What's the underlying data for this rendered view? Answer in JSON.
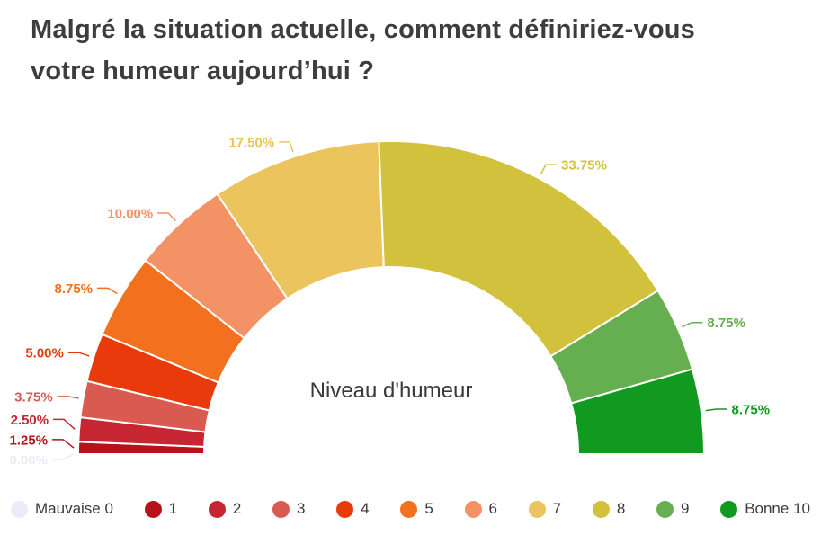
{
  "title": {
    "full": "Malgré la situation actuelle, comment définiriez-vous votre humeur aujourd’hui ?",
    "line1": "Malgré la situation actuelle, comment définiriez-vous",
    "line2": "votre humeur aujourd’hui ?"
  },
  "chart_data": {
    "type": "pie",
    "variant": "half-donut-gauge",
    "title": "Malgré la situation actuelle, comment définiriez-vous votre humeur aujourd’hui ?",
    "center_label": "Niveau d'humeur",
    "categories": [
      "Mauvaise 0",
      "1",
      "2",
      "3",
      "4",
      "5",
      "6",
      "7",
      "8",
      "9",
      "Bonne 10"
    ],
    "values": [
      0,
      1.25,
      2.5,
      3.75,
      5,
      8.75,
      10,
      17.5,
      33.75,
      8.75,
      8.75
    ],
    "value_labels": [
      "0.00%",
      "1.25%",
      "2.50%",
      "3.75%",
      "5.00%",
      "8.75%",
      "10.00%",
      "17.50%",
      "33.75%",
      "8.75%",
      "8.75%"
    ],
    "unit": "%",
    "colors": [
      "#ECEBF8",
      "#B5121B",
      "#C62631",
      "#D85A50",
      "#E93A0B",
      "#F3701E",
      "#F29265",
      "#ECC45E",
      "#D2C13C",
      "#66AF51",
      "#129A20"
    ],
    "start_angle": 180,
    "end_angle": 0,
    "legend_position": "bottom",
    "text_color": "#3a3a3a"
  }
}
